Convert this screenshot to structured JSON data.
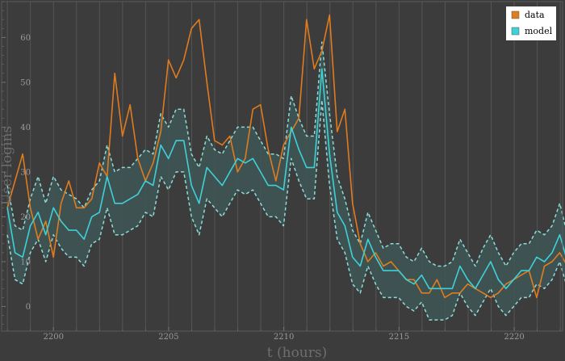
{
  "chart_data": {
    "type": "line",
    "xlabel": "t (hours)",
    "ylabel": "User logins",
    "xlim": [
      2197.75,
      2222.1
    ],
    "ylim": [
      -5.5,
      68
    ],
    "x_ticks": [
      2200,
      2205,
      2210,
      2215,
      2220
    ],
    "y_ticks": [
      0,
      10,
      20,
      30,
      40,
      50,
      60
    ],
    "grid": "vertical-hourly",
    "legend_position": "top-right",
    "x_start": 2198,
    "x_step": 0.333,
    "colors": {
      "background": "#3c3c3c",
      "grid": "#555555",
      "data": "#e07b1e",
      "model": "#3fd0d8",
      "band_fill": "#3e5656",
      "band_edge": "#8edcd8"
    },
    "series": [
      {
        "name": "data",
        "values": [
          22,
          28,
          34,
          22,
          15,
          19,
          11,
          23,
          28,
          22,
          22,
          24,
          32,
          29,
          52,
          38,
          45,
          33,
          28,
          32,
          39,
          55,
          51,
          55,
          62,
          64,
          50,
          37,
          36,
          38,
          30,
          33,
          44,
          45,
          35,
          28,
          36,
          39,
          42,
          64,
          53,
          57,
          65,
          39,
          44,
          23,
          14,
          10,
          12,
          9,
          10,
          8,
          6,
          6,
          3,
          3,
          6,
          2,
          3,
          3,
          5,
          4,
          3,
          2,
          3,
          5,
          6,
          7,
          8,
          2,
          9,
          10,
          12,
          9,
          8,
          13,
          14,
          10,
          11,
          15,
          10,
          16,
          18,
          17,
          18,
          20,
          21,
          11,
          10,
          12,
          21,
          14,
          18,
          19,
          10,
          12,
          20,
          16,
          17,
          13,
          16,
          9,
          8,
          14,
          8,
          6,
          9,
          6,
          8,
          10,
          8,
          6,
          12,
          7,
          16,
          10,
          16
        ]
      },
      {
        "name": "model",
        "values": [
          22,
          12,
          11,
          18,
          21,
          16,
          22,
          19,
          17,
          17,
          15,
          20,
          21,
          29,
          23,
          23,
          24,
          25,
          28,
          27,
          36,
          33,
          37,
          37,
          27,
          23,
          31,
          29,
          27,
          30,
          33,
          32,
          33,
          30,
          27,
          27,
          26,
          40,
          35,
          31,
          31,
          53,
          34,
          21,
          18,
          11,
          9,
          15,
          11,
          8,
          8,
          8,
          6,
          5,
          7,
          4,
          4,
          4,
          4,
          9,
          6,
          4,
          7,
          10,
          6,
          4,
          6,
          8,
          8,
          11,
          10,
          12,
          16,
          10,
          13,
          19,
          12,
          9,
          11,
          12,
          14,
          16,
          14,
          16,
          18,
          13,
          15,
          16,
          19,
          22,
          17,
          15,
          15,
          14,
          17,
          19,
          15,
          12,
          13,
          15,
          11,
          16,
          18,
          15,
          14,
          16,
          17,
          17,
          18,
          12,
          14,
          20,
          15,
          6,
          14,
          11,
          20
        ]
      },
      {
        "name": "model-upper",
        "values": [
          27,
          18,
          17,
          24,
          29,
          23,
          29,
          26,
          25,
          24,
          22,
          26,
          28,
          36,
          30,
          31,
          31,
          33,
          35,
          34,
          43,
          40,
          44,
          44,
          34,
          31,
          38,
          35,
          34,
          37,
          40,
          40,
          40,
          37,
          34,
          34,
          33,
          47,
          42,
          38,
          38,
          59,
          43,
          29,
          24,
          17,
          14,
          21,
          17,
          13,
          14,
          14,
          11,
          10,
          13,
          10,
          9,
          9,
          10,
          15,
          12,
          9,
          13,
          16,
          12,
          9,
          12,
          14,
          14,
          17,
          16,
          18,
          23,
          16,
          19,
          25,
          18,
          14,
          17,
          18,
          20,
          22,
          20,
          22,
          24,
          19,
          21,
          22,
          25,
          28,
          23,
          21,
          21,
          20,
          23,
          25,
          21,
          18,
          19,
          21,
          17,
          22,
          24,
          21,
          20,
          22,
          23,
          23,
          24,
          18,
          20,
          26,
          21,
          12,
          20,
          17,
          26
        ]
      },
      {
        "name": "model-lower",
        "values": [
          16,
          6,
          5,
          12,
          15,
          10,
          16,
          13,
          11,
          11,
          9,
          14,
          15,
          22,
          16,
          16,
          17,
          18,
          21,
          20,
          29,
          26,
          30,
          30,
          20,
          16,
          24,
          22,
          20,
          23,
          26,
          25,
          26,
          23,
          20,
          20,
          18,
          33,
          28,
          24,
          24,
          46,
          27,
          15,
          12,
          5,
          3,
          9,
          5,
          2,
          2,
          2,
          0,
          -1,
          1,
          -3,
          -3,
          -3,
          -2,
          3,
          0,
          -2,
          1,
          4,
          0,
          -2,
          0,
          2,
          2,
          5,
          4,
          6,
          10,
          4,
          7,
          13,
          6,
          3,
          5,
          6,
          8,
          10,
          8,
          10,
          12,
          7,
          9,
          10,
          13,
          16,
          11,
          9,
          9,
          8,
          11,
          13,
          9,
          6,
          7,
          9,
          5,
          10,
          12,
          9,
          8,
          10,
          11,
          11,
          12,
          6,
          8,
          14,
          9,
          0,
          8,
          5,
          14
        ]
      }
    ]
  }
}
